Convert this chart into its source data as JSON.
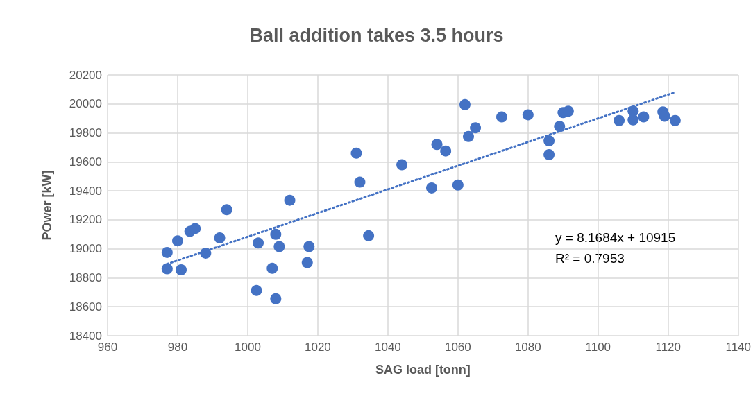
{
  "chart_data": {
    "type": "scatter",
    "title": "Ball addition takes 3.5 hours",
    "xlabel": "SAG load [tonn]",
    "ylabel": "POwer [kW]",
    "xlim": [
      960,
      1140
    ],
    "xticks": [
      960,
      980,
      1000,
      1020,
      1040,
      1060,
      1080,
      1100,
      1120,
      1140
    ],
    "ylim": [
      18400,
      20200
    ],
    "yticks": [
      18400,
      18600,
      18800,
      19000,
      19200,
      19400,
      19600,
      19800,
      20000,
      20200
    ],
    "grid": true,
    "marker": "circle",
    "annotations": [
      "y = 8.1684x + 10915",
      "R² = 0.7953"
    ],
    "series": [
      {
        "color": "#4472c4",
        "x": [
          977,
          977,
          980,
          981,
          983.5,
          985,
          988,
          992,
          994,
          1002.5,
          1003,
          1007,
          1008,
          1008,
          1009,
          1012,
          1017,
          1017.5,
          1031,
          1032,
          1034.5,
          1044,
          1052.5,
          1054,
          1056.5,
          1060,
          1062,
          1063,
          1065,
          1072.5,
          1080,
          1086,
          1086,
          1089,
          1090,
          1091.5,
          1106,
          1110,
          1110,
          1113,
          1118.5,
          1119,
          1122
        ],
        "values": [
          18975,
          18862,
          19055,
          18855,
          19120,
          19140,
          18970,
          19075,
          19270,
          18712,
          19040,
          18865,
          18655,
          19100,
          19015,
          19335,
          18905,
          19015,
          19660,
          19460,
          19090,
          19580,
          19420,
          19720,
          19675,
          19440,
          19995,
          19775,
          19835,
          19910,
          19925,
          19650,
          19745,
          19845,
          19940,
          19950,
          19885,
          19950,
          19890,
          19910,
          19945,
          19915,
          19885
        ]
      },
      {
        "type": "line",
        "color": "#4472c4",
        "marker": "none",
        "line_style": "dotted",
        "x": [
          977,
          1122
        ],
        "values": [
          18895,
          20080
        ]
      }
    ]
  }
}
